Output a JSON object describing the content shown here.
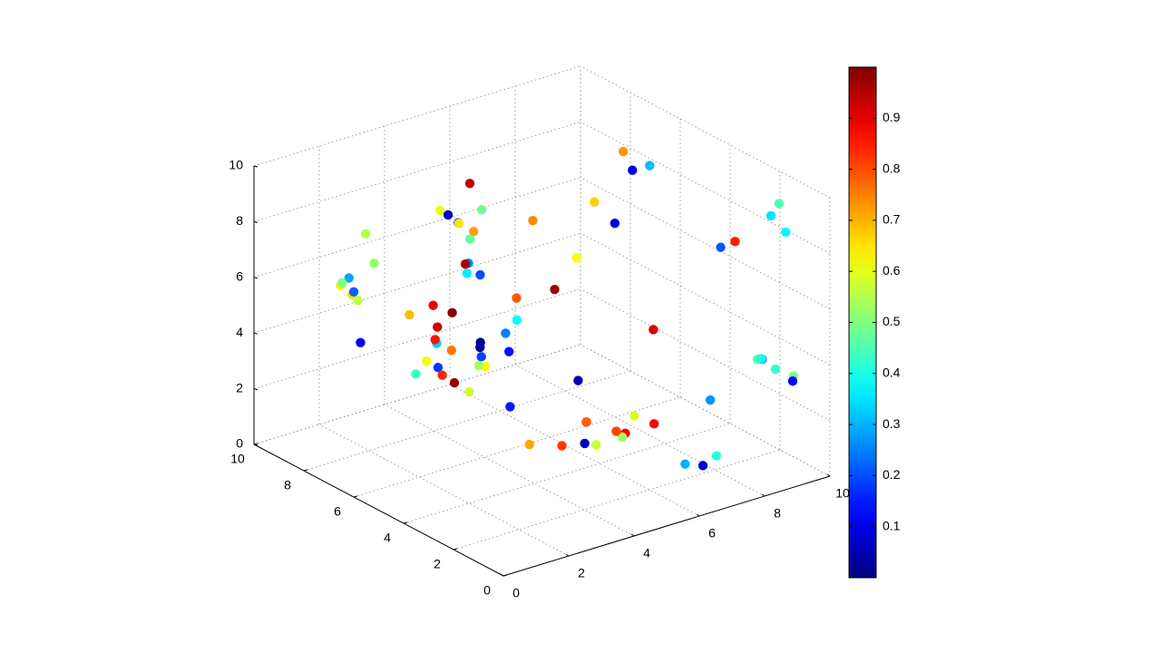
{
  "chart_data": {
    "type": "scatter3d",
    "xlim": [
      0,
      10
    ],
    "ylim": [
      0,
      10
    ],
    "zlim": [
      0,
      10
    ],
    "xticks": [
      0,
      2,
      4,
      6,
      8,
      10
    ],
    "yticks": [
      0,
      2,
      4,
      6,
      8,
      10
    ],
    "zticks": [
      0,
      2,
      4,
      6,
      8,
      10
    ],
    "grid": true,
    "colormap": "jet",
    "clim": [
      0,
      1
    ],
    "cticks": [
      0.1,
      0.2,
      0.3,
      0.4,
      0.5,
      0.6,
      0.7,
      0.8,
      0.9
    ],
    "x": [
      1.2,
      8.7,
      4.5,
      6.3,
      2.9,
      9.1,
      0.4,
      5.6,
      7.8,
      3.3,
      6.9,
      1.8,
      4.1,
      8.2,
      2.4,
      5.0,
      9.6,
      0.9,
      7.1,
      3.7,
      6.0,
      2.2,
      8.9,
      4.8,
      1.5,
      7.4,
      5.3,
      0.7,
      9.3,
      3.0,
      6.6,
      2.7,
      8.0,
      4.3,
      1.0,
      5.9,
      7.7,
      3.5,
      9.8,
      0.2,
      6.2,
      2.0,
      8.5,
      4.0,
      1.7,
      7.0,
      5.5,
      3.9,
      9.0,
      0.6,
      6.8,
      2.5,
      8.3,
      4.6,
      1.3,
      7.6,
      5.1,
      3.2,
      9.4,
      0.1,
      6.4,
      2.1,
      8.8,
      4.9,
      1.9,
      7.2,
      5.7,
      3.6,
      9.7,
      0.5,
      6.1,
      2.8,
      8.1,
      4.4,
      1.1,
      7.9,
      5.4,
      3.1,
      9.2,
      0.8
    ],
    "y": [
      7.3,
      2.1,
      9.4,
      4.6,
      0.8,
      5.9,
      3.2,
      8.7,
      1.5,
      6.4,
      9.9,
      0.3,
      5.1,
      7.8,
      2.6,
      4.2,
      8.1,
      6.7,
      1.0,
      3.8,
      9.2,
      5.5,
      0.6,
      7.0,
      2.9,
      4.8,
      8.4,
      6.1,
      1.8,
      3.4,
      0.1,
      9.6,
      5.3,
      2.3,
      7.5,
      4.0,
      8.9,
      6.8,
      1.2,
      3.0,
      9.0,
      5.7,
      0.4,
      7.2,
      2.0,
      4.4,
      8.6,
      6.3,
      1.6,
      3.6,
      0.9,
      9.8,
      5.0,
      2.7,
      7.7,
      4.7,
      8.2,
      6.0,
      1.4,
      3.9,
      9.3,
      5.2,
      0.2,
      7.4,
      2.4,
      4.9,
      8.8,
      6.5,
      1.1,
      3.3,
      0.7,
      9.5,
      5.8,
      2.5,
      7.9,
      4.3,
      8.0,
      6.6,
      1.7,
      3.1
    ],
    "z": [
      4.5,
      7.9,
      1.2,
      9.0,
      5.6,
      2.8,
      6.7,
      0.5,
      8.3,
      3.9,
      6.0,
      9.5,
      2.2,
      4.8,
      7.1,
      0.9,
      5.4,
      8.8,
      3.3,
      1.6,
      7.6,
      4.1,
      9.9,
      2.5,
      6.3,
      0.2,
      5.0,
      8.1,
      3.6,
      7.3,
      1.9,
      4.6,
      9.2,
      2.9,
      6.8,
      0.7,
      5.8,
      8.5,
      3.1,
      7.0,
      1.4,
      4.3,
      9.7,
      2.1,
      6.5,
      0.4,
      5.2,
      8.0,
      3.8,
      7.8,
      1.1,
      4.9,
      9.4,
      2.6,
      6.1,
      0.8,
      5.5,
      8.7,
      3.4,
      7.5,
      1.7,
      4.0,
      9.1,
      2.3,
      6.9,
      0.3,
      5.9,
      8.3,
      3.0,
      7.2,
      1.5,
      4.4,
      9.6,
      2.0,
      6.4,
      0.6,
      5.1,
      8.9,
      3.7,
      7.7
    ],
    "c": [
      0.12,
      0.85,
      0.43,
      0.67,
      0.05,
      0.91,
      0.33,
      0.58,
      0.21,
      0.76,
      0.48,
      0.97,
      0.15,
      0.62,
      0.38,
      0.82,
      0.09,
      0.55,
      0.27,
      0.71,
      0.94,
      0.18,
      0.45,
      0.63,
      0.03,
      0.88,
      0.36,
      0.52,
      0.24,
      0.79,
      0.41,
      0.66,
      0.11,
      0.93,
      0.29,
      0.57,
      0.74,
      0.07,
      0.49,
      0.86,
      0.19,
      0.61,
      0.35,
      0.98,
      0.14,
      0.53,
      0.26,
      0.72,
      0.46,
      0.89,
      0.08,
      0.64,
      0.31,
      0.78,
      0.22,
      0.59,
      0.96,
      0.17,
      0.42,
      0.69,
      0.02,
      0.84,
      0.37,
      0.54,
      0.25,
      0.81,
      0.47,
      0.65,
      0.13,
      0.92,
      0.3,
      0.56,
      0.73,
      0.06,
      0.5,
      0.87,
      0.2,
      0.6,
      0.39,
      0.99
    ]
  }
}
